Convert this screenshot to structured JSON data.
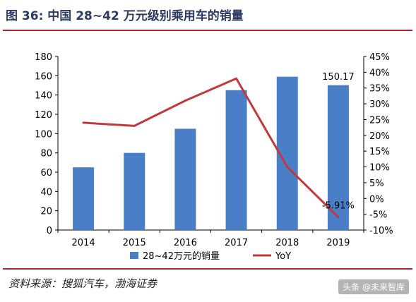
{
  "header": {
    "title": "图 36:  中国 28~42 万元级别乘用车的销量"
  },
  "footer": {
    "source": "资料来源：搜狐汽车，渤海证券",
    "watermark": "头条 @未来智库"
  },
  "colors": {
    "bar": "#4a7ec7",
    "line": "#c0393f",
    "rule": "#a3232a",
    "axis": "#000000"
  },
  "chart_data": {
    "type": "bar+line",
    "categories": [
      "2014",
      "2015",
      "2016",
      "2017",
      "2018",
      "2019"
    ],
    "series": [
      {
        "name": "28~42万元的销量",
        "type": "bar",
        "axis": "left",
        "values": [
          65,
          80,
          105,
          145,
          159,
          150.17
        ]
      },
      {
        "name": "YoY",
        "type": "line",
        "axis": "right",
        "values": [
          24,
          23,
          31,
          38,
          10,
          -5.91
        ]
      }
    ],
    "y_left": {
      "min": 0,
      "max": 180,
      "step": 20
    },
    "y_right": {
      "min": -10,
      "max": 45,
      "step": 5,
      "unit": "%"
    },
    "data_labels": [
      {
        "series": 0,
        "index": 5,
        "text": "150.17"
      },
      {
        "series": 1,
        "index": 5,
        "text": "-5.91%"
      }
    ],
    "legend": {
      "placement": "bottom"
    },
    "grid": false
  }
}
